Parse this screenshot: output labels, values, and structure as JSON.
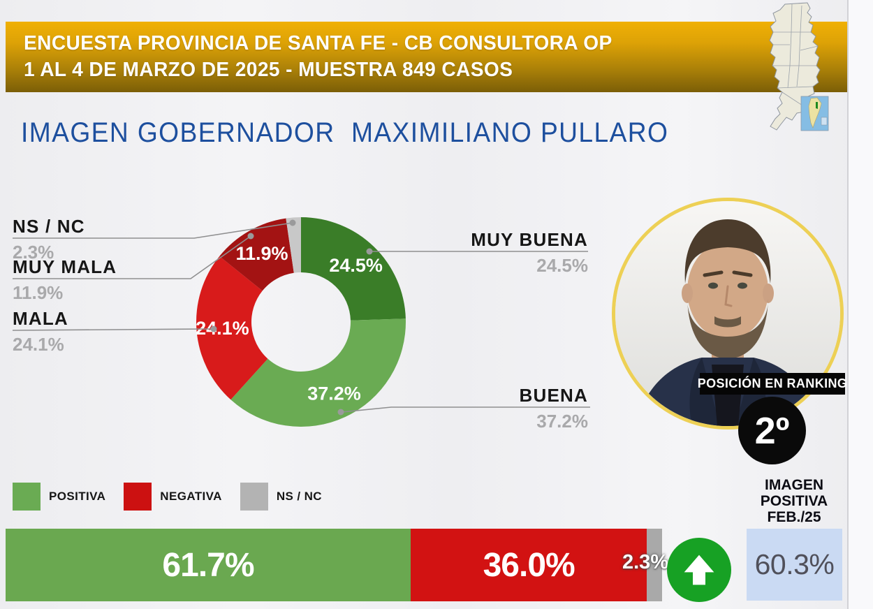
{
  "header": {
    "line1": "ENCUESTA PROVINCIA DE SANTA FE - CB CONSULTORA OP",
    "line2": "1 AL 4 DE MARZO DE 2025 - MUESTRA 849 CASOS"
  },
  "title": "IMAGEN GOBERNADOR  MAXIMILIANO PULLARO",
  "chart_data": {
    "type": "pie",
    "donut": true,
    "title": "IMAGEN GOBERNADOR MAXIMILIANO PULLARO",
    "direction": "clockwise",
    "start_angle_deg": 0,
    "categories": [
      "MUY BUENA",
      "BUENA",
      "MALA",
      "MUY MALA",
      "NS / NC"
    ],
    "values": [
      24.5,
      37.2,
      24.1,
      11.9,
      2.3
    ],
    "slices": [
      {
        "name": "muy-buena",
        "label": "MUY BUENA",
        "value": 24.5,
        "display": "24.5%",
        "color": "#3a7d28",
        "inner_label": true
      },
      {
        "name": "buena",
        "label": "BUENA",
        "value": 37.2,
        "display": "37.2%",
        "color": "#6aab53",
        "inner_label": true
      },
      {
        "name": "mala",
        "label": "MALA",
        "value": 24.1,
        "display": "24.1%",
        "color": "#d81b1b",
        "inner_label": true
      },
      {
        "name": "muy-mala",
        "label": "MUY MALA",
        "value": 11.9,
        "display": "11.9%",
        "color": "#a31313",
        "inner_label": true
      },
      {
        "name": "ns-nc",
        "label": "NS / NC",
        "value": 2.3,
        "display": "2.3%",
        "color": "#c8c8c8",
        "inner_label": false
      }
    ],
    "legend": [
      {
        "label": "POSITIVA",
        "color": "#6aab53"
      },
      {
        "label": "NEGATIVA",
        "color": "#cc1111"
      },
      {
        "label": "NS / NC",
        "color": "#b3b3b3"
      }
    ],
    "summary_bar": {
      "type": "stacked-bar",
      "segments": [
        {
          "name": "positiva",
          "value": 61.7,
          "display": "61.7%",
          "color": "#6aa850",
          "show_label_inside": true
        },
        {
          "name": "negativa",
          "value": 36.0,
          "display": "36.0%",
          "color": "#d21212",
          "show_label_inside": true
        },
        {
          "name": "ns-nc",
          "value": 2.3,
          "display": "2.3%",
          "color": "#a9a9a9",
          "show_label_inside": false
        }
      ]
    }
  },
  "callouts": {
    "left": [
      {
        "label": "NS / NC",
        "value": "2.3%"
      },
      {
        "label": "MUY MALA",
        "value": "11.9%"
      },
      {
        "label": "MALA",
        "value": "24.1%"
      }
    ],
    "right": [
      {
        "label": "MUY BUENA",
        "value": "24.5%"
      },
      {
        "label": "BUENA",
        "value": "37.2%"
      }
    ]
  },
  "ranking": {
    "label": "POSICIÓN EN RANKING",
    "position": "2º"
  },
  "previous_month": {
    "caption": [
      "IMAGEN",
      "POSITIVA",
      "FEB./25"
    ],
    "value": "60.3%",
    "trend_icon": "arrow-up"
  },
  "colors": {
    "banner_gold": "#dda206",
    "title_blue": "#1d4f9e",
    "trend_green": "#17a124",
    "previous_box_blue": "#cadaf3",
    "photo_ring_yellow": "#edd055"
  }
}
